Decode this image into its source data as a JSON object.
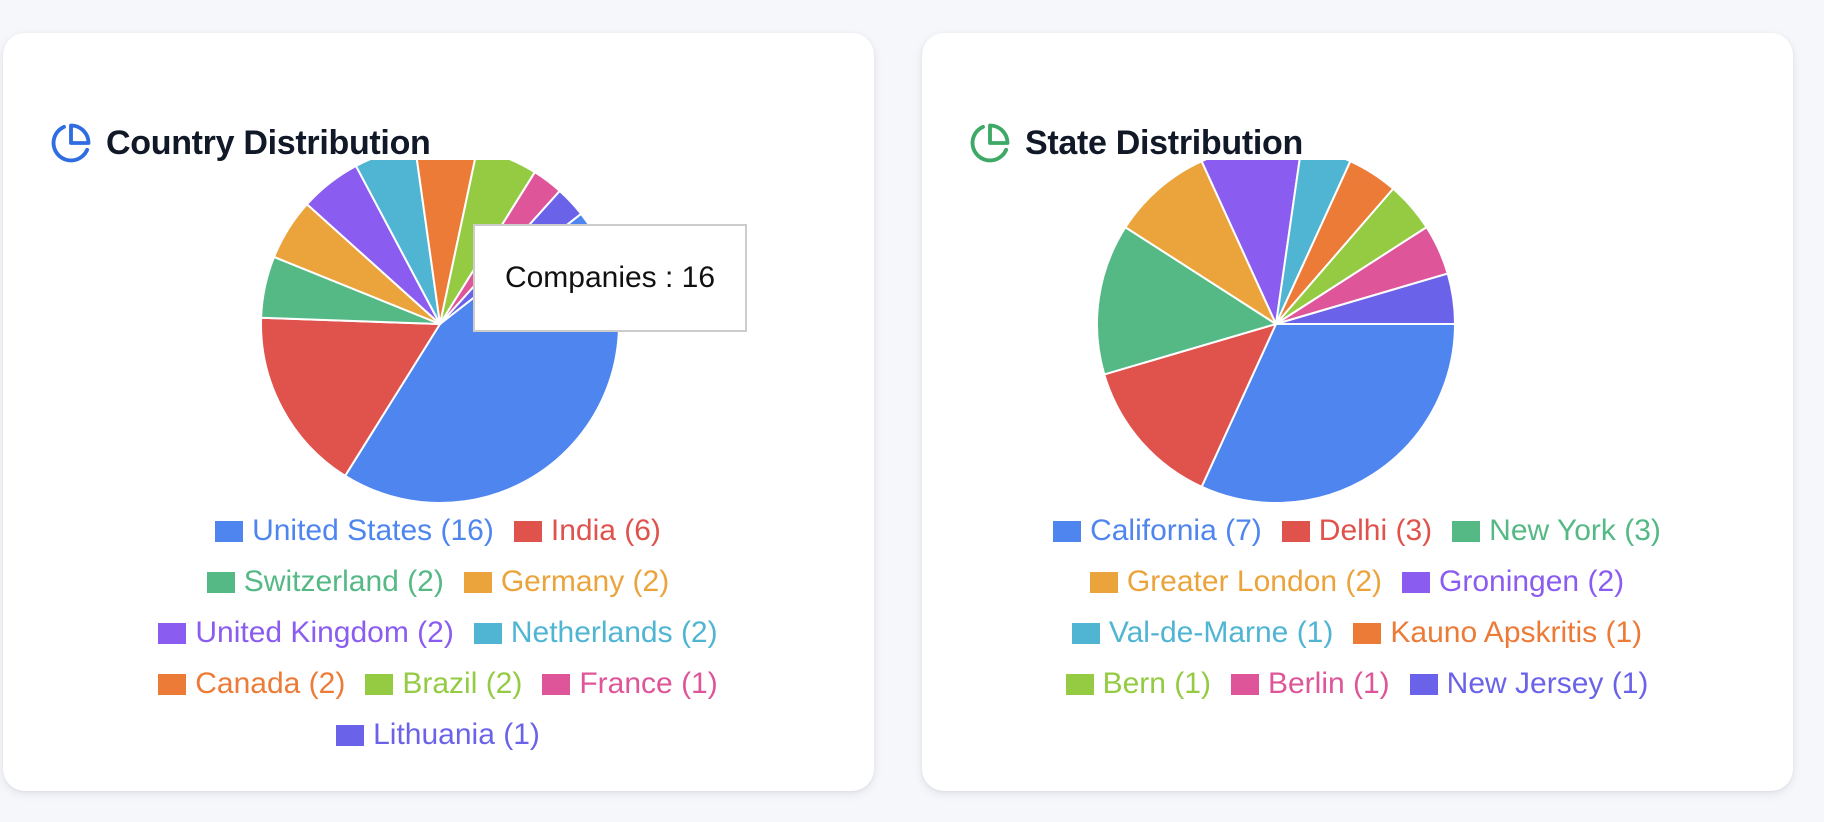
{
  "chart_data": [
    {
      "type": "pie",
      "title": "Country Distribution",
      "icon": "pie-chart-icon",
      "icon_color": "#2f6de1",
      "categories": [
        "United States",
        "India",
        "Switzerland",
        "Germany",
        "United Kingdom",
        "Netherlands",
        "Canada",
        "Brazil",
        "France",
        "Lithuania"
      ],
      "values": [
        16,
        6,
        2,
        2,
        2,
        2,
        2,
        2,
        1,
        1
      ],
      "legend_labels": [
        "United States (16)",
        "India (6)",
        "Switzerland (2)",
        "Germany (2)",
        "United Kingdom (2)",
        "Netherlands (2)",
        "Canada (2)",
        "Brazil (2)",
        "France (1)",
        "Lithuania (1)"
      ],
      "colors": [
        "#4f85ee",
        "#e0524c",
        "#55b985",
        "#eba43c",
        "#8a5cf0",
        "#4fb5d3",
        "#ec7b37",
        "#94cb43",
        "#de5599",
        "#6a63e9"
      ],
      "legend_placement": "bottom",
      "tooltip": {
        "visible": true,
        "text": "Companies : 16",
        "category": "United States"
      }
    },
    {
      "type": "pie",
      "title": "State Distribution",
      "icon": "pie-chart-icon",
      "icon_color": "#3ea866",
      "categories": [
        "California",
        "Delhi",
        "New York",
        "Greater London",
        "Groningen",
        "Val-de-Marne",
        "Kauno Apskritis",
        "Bern",
        "Berlin",
        "New Jersey"
      ],
      "values": [
        7,
        3,
        3,
        2,
        2,
        1,
        1,
        1,
        1,
        1
      ],
      "legend_labels": [
        "California (7)",
        "Delhi (3)",
        "New York (3)",
        "Greater London (2)",
        "Groningen (2)",
        "Val-de-Marne (1)",
        "Kauno Apskritis (1)",
        "Bern (1)",
        "Berlin (1)",
        "New Jersey (1)"
      ],
      "colors": [
        "#4f85ee",
        "#e0524c",
        "#55b985",
        "#eba43c",
        "#8a5cf0",
        "#4fb5d3",
        "#ec7b37",
        "#94cb43",
        "#de5599",
        "#6a63e9"
      ],
      "legend_placement": "bottom"
    }
  ]
}
